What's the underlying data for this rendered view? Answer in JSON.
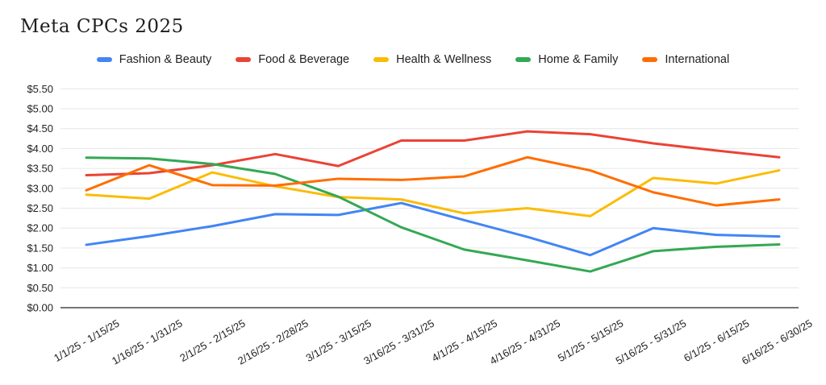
{
  "chart_data": {
    "type": "line",
    "title": "Meta CPCs 2025",
    "legend_position": "top",
    "grid": true,
    "categories": [
      "1/1/25 - 1/15/25",
      "1/16/25 - 1/31/25",
      "2/1/25 - 2/15/25",
      "2/16/25 - 2/28/25",
      "3/1/25 - 3/15/25",
      "3/16/25 - 3/31/25",
      "4/1/25 - 4/15/25",
      "4/16/25 - 4/31/25",
      "5/1/25 - 5/15/25",
      "5/16/25 - 5/31/25",
      "6/1/25 - 6/15/25",
      "6/16/25 - 6/30/25"
    ],
    "series": [
      {
        "name": "Fashion & Beauty",
        "color": "#4285F4",
        "values": [
          1.58,
          1.8,
          2.05,
          2.35,
          2.33,
          2.63,
          2.2,
          1.78,
          1.32,
          2.0,
          1.83,
          1.79
        ]
      },
      {
        "name": "Food & Beverage",
        "color": "#EA4335",
        "values": [
          3.33,
          3.38,
          3.58,
          3.86,
          3.56,
          4.2,
          4.2,
          4.43,
          4.36,
          4.13,
          3.95,
          3.78
        ]
      },
      {
        "name": "Health & Wellness",
        "color": "#FBBC04",
        "values": [
          2.84,
          2.74,
          3.4,
          3.05,
          2.78,
          2.72,
          2.37,
          2.5,
          2.3,
          3.26,
          3.12,
          3.45
        ]
      },
      {
        "name": "Home & Family",
        "color": "#34A853",
        "values": [
          3.77,
          3.75,
          3.61,
          3.36,
          2.79,
          2.02,
          1.46,
          1.19,
          0.91,
          1.42,
          1.53,
          1.59
        ]
      },
      {
        "name": "International",
        "color": "#FF6D01",
        "values": [
          2.95,
          3.58,
          3.08,
          3.07,
          3.24,
          3.21,
          3.3,
          3.78,
          3.45,
          2.9,
          2.57,
          2.72
        ]
      }
    ],
    "y_axis": {
      "min": 0,
      "max": 5.5,
      "step": 0.5,
      "tick_labels": [
        "$0.00",
        "$0.50",
        "$1.00",
        "$1.50",
        "$2.00",
        "$2.50",
        "$3.00",
        "$3.50",
        "$4.00",
        "$4.50",
        "$5.00",
        "$5.50"
      ]
    }
  }
}
